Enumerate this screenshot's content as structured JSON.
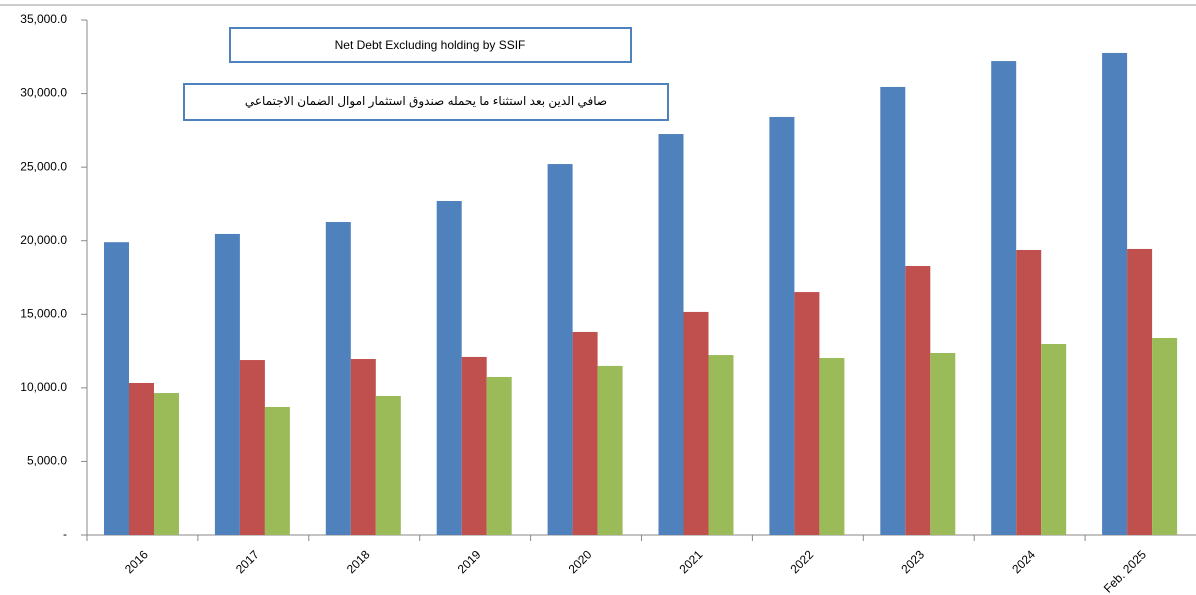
{
  "chart_data": {
    "type": "bar",
    "title": "Net Debt Excluding holding by SSIF",
    "subtitle": "صافي الدين بعد استثناء ما يحمله صندوق استثمار اموال الضمان الاجتماعي",
    "categories": [
      "2016",
      "2017",
      "2018",
      "2019",
      "2020",
      "2021",
      "2022",
      "2023",
      "2024",
      "Feb. 2025"
    ],
    "series": [
      {
        "color": "#4f81bd",
        "values": [
          19900,
          20460,
          21270,
          22700,
          25210,
          27250,
          28410,
          30450,
          32210,
          32760
        ]
      },
      {
        "color": "#c0504d",
        "values": [
          10330,
          11890,
          11960,
          12100,
          13800,
          15160,
          16510,
          18280,
          19370,
          19440
        ]
      },
      {
        "color": "#9bbb59",
        "values": [
          9650,
          8700,
          9450,
          10740,
          11490,
          12230,
          12030,
          12370,
          12980,
          13390
        ]
      }
    ],
    "ylim": [
      0,
      35000
    ],
    "yticks": [
      {
        "value": 0,
        "label": "-"
      },
      {
        "value": 5000,
        "label": "5,000.0"
      },
      {
        "value": 10000,
        "label": "10,000.0"
      },
      {
        "value": 15000,
        "label": "15,000.0"
      },
      {
        "value": 20000,
        "label": "20,000.0"
      },
      {
        "value": 25000,
        "label": "25,000.0"
      },
      {
        "value": 30000,
        "label": "30,000.0"
      },
      {
        "value": 35000,
        "label": "35,000.0"
      }
    ],
    "grid": false
  }
}
